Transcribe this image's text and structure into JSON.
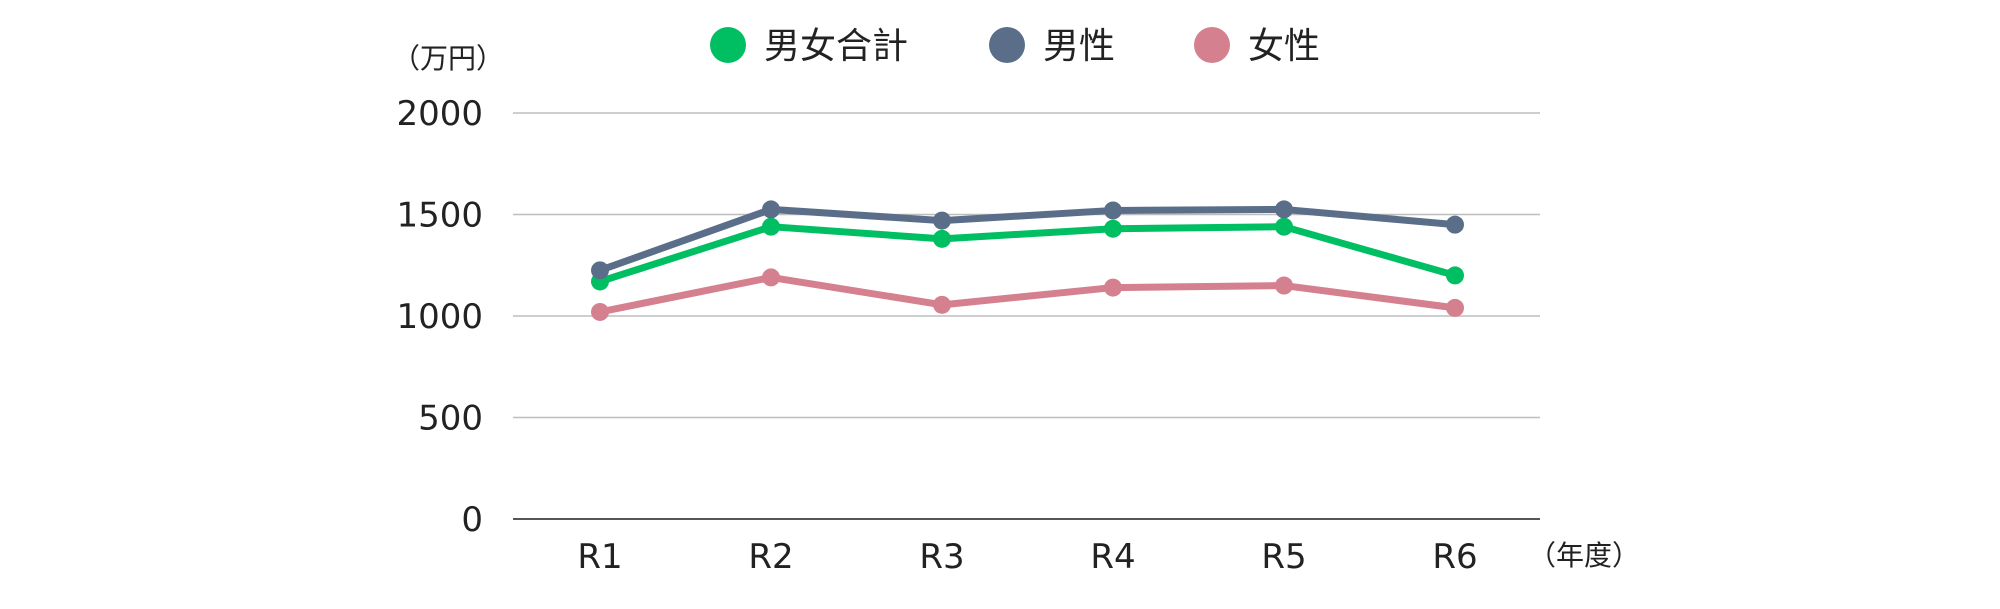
{
  "chart_data": {
    "type": "line",
    "categories": [
      "R1",
      "R2",
      "R3",
      "R4",
      "R5",
      "R6"
    ],
    "series": [
      {
        "name": "男女合計",
        "color": "#00BF63",
        "values": [
          1170,
          1440,
          1380,
          1430,
          1440,
          1200
        ]
      },
      {
        "name": "男性",
        "color": "#5A6E8A",
        "values": [
          1225,
          1525,
          1470,
          1520,
          1525,
          1450
        ]
      },
      {
        "name": "女性",
        "color": "#D4808F",
        "values": [
          1020,
          1190,
          1055,
          1140,
          1150,
          1040
        ]
      }
    ],
    "ylabel": "（万円）",
    "xlabel": "（年度）",
    "ylim": [
      0,
      2000
    ],
    "yticks": [
      0,
      500,
      1000,
      1500,
      2000
    ],
    "grid": true,
    "legend_position": "top-center"
  }
}
